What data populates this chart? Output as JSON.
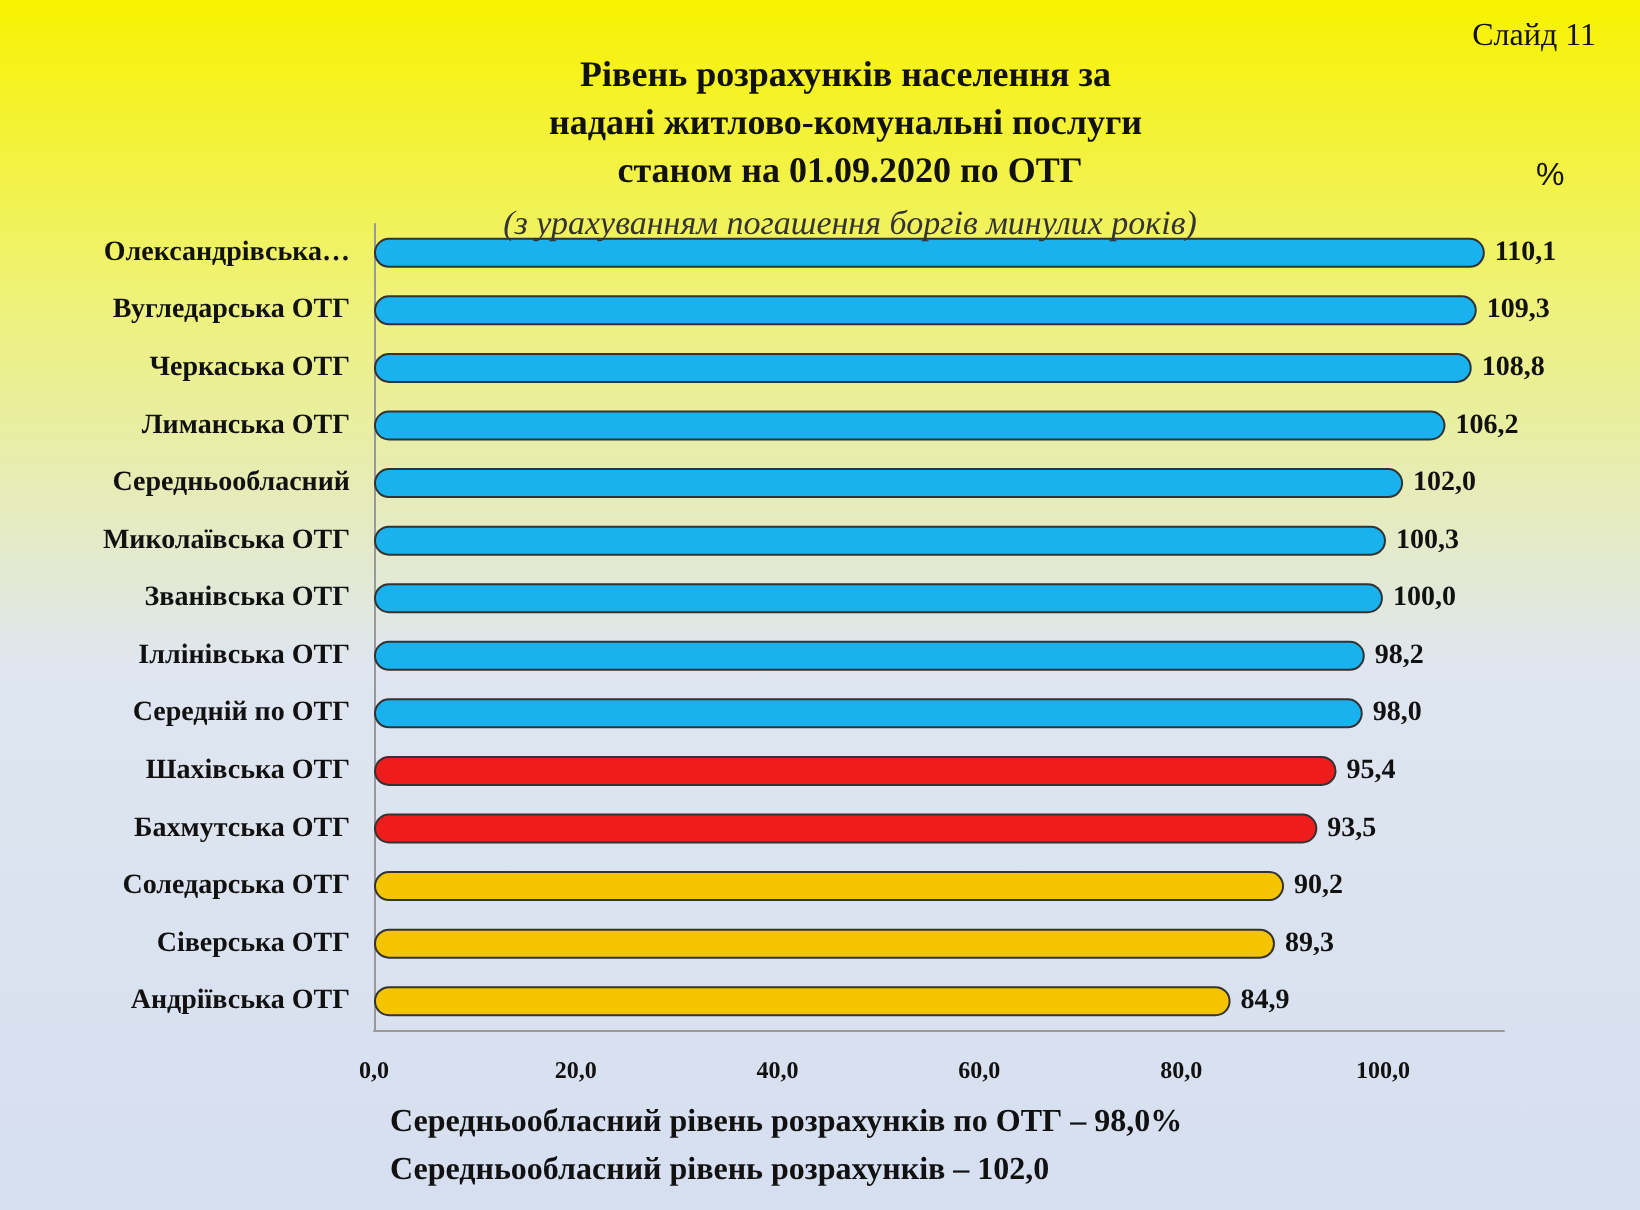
{
  "chart_data": {
    "type": "bar",
    "orientation": "horizontal",
    "title": "Рівень розрахунків населення за надані житлово-комунальні послуги станом на 01.09.2020 по ОТГ",
    "subtitle": "(з урахуванням погашення боргів минулих років)",
    "xlabel": "%",
    "categories": [
      "Олександрівська…",
      "Вугледарська ОТГ",
      "Черкаська ОТГ",
      "Лиманська ОТГ",
      "Середньообласний",
      "Миколаївська ОТГ",
      "Званівська ОТГ",
      "Іллінівська ОТГ",
      "Середній по ОТГ",
      "Шахівська ОТГ",
      "Бахмутська ОТГ",
      "Соледарська ОТГ",
      "Сіверська ОТГ",
      "Андріївська ОТГ"
    ],
    "values": [
      110.1,
      109.3,
      108.8,
      106.2,
      102.0,
      100.3,
      100.0,
      98.2,
      98.0,
      95.4,
      93.5,
      90.2,
      89.3,
      84.9
    ],
    "value_labels": [
      "110,1",
      "109,3",
      "108,8",
      "106,2",
      "102,0",
      "100,3",
      "100,0",
      "98,2",
      "98,0",
      "95,4",
      "93,5",
      "90,2",
      "89,3",
      "84,9"
    ],
    "colors": [
      "#1ab2ee",
      "#1ab2ee",
      "#1ab2ee",
      "#1ab2ee",
      "#1ab2ee",
      "#1ab2ee",
      "#1ab2ee",
      "#1ab2ee",
      "#1ab2ee",
      "#ee1c1c",
      "#ee1c1c",
      "#f5c400",
      "#f5c400",
      "#f5c400"
    ],
    "xlim": [
      0,
      112
    ],
    "xticks": [
      {
        "value": 0,
        "label": "0,0"
      },
      {
        "value": 20,
        "label": "20,0"
      },
      {
        "value": 40,
        "label": "40,0"
      },
      {
        "value": 60,
        "label": "60,0"
      },
      {
        "value": 80,
        "label": "80,0"
      },
      {
        "value": 100,
        "label": "100,0"
      }
    ],
    "grid": false,
    "annotations": [
      "Слайд 11",
      "Середньообласний рівень розрахунків по ОТГ – 98,0%",
      "Середньообласний рівень розрахунків – 102,0"
    ]
  }
}
